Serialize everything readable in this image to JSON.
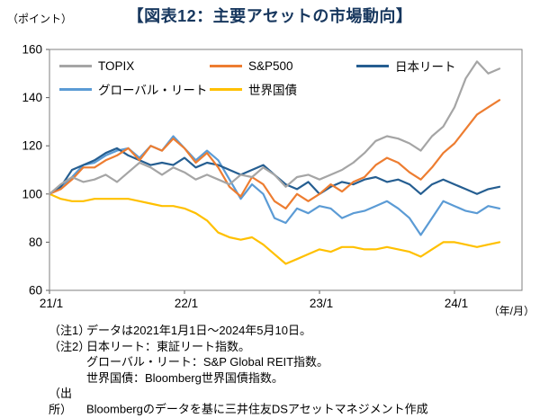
{
  "header": {
    "unit_label": "（ポイント）",
    "title": "【図表12：主要アセットの市場動向】"
  },
  "chart_data": {
    "type": "line",
    "title": "【図表12:主要アセットの市場動向】",
    "ylabel": "（ポイント）",
    "x_unit_label": "（年/月）",
    "ylim": [
      60,
      160
    ],
    "yticks": [
      60,
      80,
      100,
      120,
      140,
      160
    ],
    "xtick_labels": [
      "21/1",
      "22/1",
      "23/1",
      "24/1"
    ],
    "xtick_positions": [
      0,
      12,
      24,
      36
    ],
    "x_total_months": 42,
    "x_note": "monthly points from 2021/1 to 2024/5",
    "grid": false,
    "legend_position": "top-inside",
    "series": [
      {
        "name": "TOPIX",
        "color": "#A5A5A5",
        "values": [
          100,
          104,
          107,
          105,
          106,
          108,
          105,
          109,
          113,
          111,
          108,
          111,
          109,
          106,
          108,
          106,
          104,
          108,
          107,
          111,
          108,
          103,
          107,
          108,
          106,
          108,
          110,
          113,
          117,
          122,
          124,
          123,
          121,
          118,
          124,
          128,
          136,
          148,
          155,
          150,
          152
        ]
      },
      {
        "name": "S&P500",
        "color": "#ED7D31",
        "values": [
          100,
          102,
          106,
          111,
          111,
          114,
          116,
          119,
          114,
          120,
          118,
          123,
          119,
          113,
          117,
          111,
          103,
          99,
          107,
          104,
          97,
          94,
          100,
          97,
          100,
          104,
          101,
          105,
          107,
          112,
          115,
          113,
          109,
          106,
          111,
          117,
          121,
          127,
          133,
          136,
          139
        ]
      },
      {
        "name": "日本リート",
        "color": "#255E91",
        "values": [
          100,
          103,
          110,
          112,
          114,
          117,
          119,
          116,
          114,
          112,
          113,
          112,
          115,
          111,
          113,
          112,
          110,
          108,
          110,
          112,
          108,
          104,
          102,
          105,
          100,
          103,
          105,
          104,
          106,
          107,
          105,
          106,
          104,
          100,
          104,
          106,
          104,
          102,
          100,
          102,
          103
        ]
      },
      {
        "name": "グローバル・リート",
        "color": "#5B9BD5",
        "values": [
          100,
          103,
          107,
          112,
          113,
          116,
          118,
          119,
          115,
          120,
          118,
          124,
          119,
          114,
          118,
          114,
          106,
          98,
          104,
          100,
          90,
          88,
          94,
          92,
          95,
          94,
          90,
          92,
          93,
          95,
          97,
          94,
          90,
          83,
          90,
          97,
          95,
          93,
          92,
          95,
          94
        ]
      },
      {
        "name": "世界国債",
        "color": "#FFC000",
        "values": [
          100,
          98,
          97,
          97,
          98,
          98,
          98,
          98,
          97,
          96,
          95,
          95,
          94,
          92,
          89,
          84,
          82,
          81,
          82,
          79,
          75,
          71,
          73,
          75,
          77,
          76,
          78,
          78,
          77,
          77,
          78,
          77,
          76,
          74,
          77,
          80,
          80,
          79,
          78,
          79,
          80
        ]
      }
    ]
  },
  "notes": {
    "note1_label": "（注1）",
    "note1_text": "データは2021年1月1日～2024年5月10日。",
    "note2_label": "（注2）",
    "note2_line1": "日本リート：東証リート指数。",
    "note2_line2": "グローバル・リート：S&P Global REIT指数。",
    "note2_line3": "世界国債：Bloomberg世界国債指数。",
    "source_label": "（出所）",
    "source_text": "Bloombergのデータを基に三井住友DSアセットマネジメント作成"
  }
}
